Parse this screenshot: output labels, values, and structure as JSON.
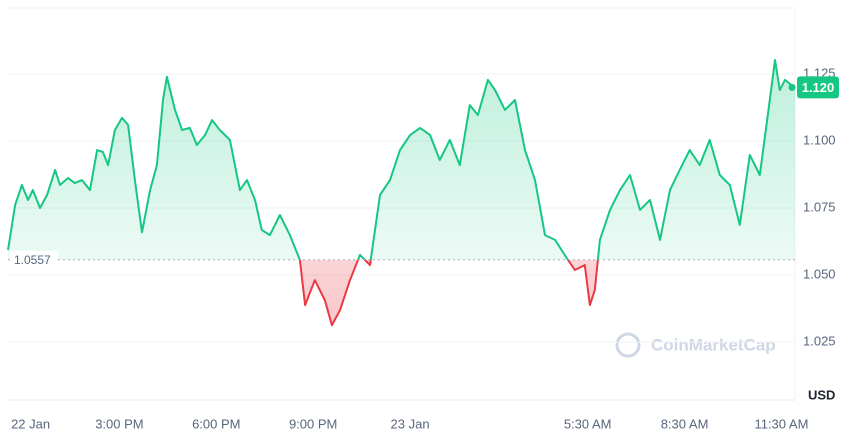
{
  "chart_data": {
    "type": "line",
    "currency": "USD",
    "watermark": "CoinMarketCap",
    "x": [
      11.55,
      11.77,
      11.98,
      12.17,
      12.32,
      12.54,
      12.76,
      13.01,
      13.16,
      13.41,
      13.62,
      13.84,
      14.09,
      14.31,
      14.49,
      14.65,
      14.86,
      15.08,
      15.27,
      15.48,
      15.7,
      15.95,
      16.16,
      16.35,
      16.47,
      16.72,
      16.94,
      17.18,
      17.4,
      17.65,
      17.87,
      18.11,
      18.42,
      18.73,
      18.95,
      19.2,
      19.41,
      19.66,
      19.97,
      20.28,
      20.59,
      20.75,
      21.05,
      21.36,
      21.58,
      21.83,
      22.14,
      22.45,
      22.76,
      23.07,
      23.38,
      23.69,
      24.0,
      24.31,
      24.62,
      24.92,
      25.23,
      25.54,
      25.85,
      26.1,
      26.41,
      26.63,
      26.94,
      27.25,
      27.56,
      27.87,
      28.18,
      28.49,
      28.79,
      29.1,
      29.41,
      29.57,
      29.72,
      29.88,
      30.19,
      30.5,
      30.81,
      31.12,
      31.43,
      31.74,
      32.05,
      32.35,
      32.66,
      32.97,
      33.28,
      33.59,
      33.9,
      34.21,
      34.52,
      34.83,
      35.14,
      35.3,
      35.45,
      35.61,
      35.92
    ],
    "values": [
      1.0593,
      1.0761,
      1.0836,
      1.078,
      1.0817,
      1.075,
      1.0799,
      1.0892,
      1.0836,
      1.0862,
      1.0843,
      1.0854,
      1.0817,
      1.0966,
      1.0959,
      1.091,
      1.1041,
      1.1086,
      1.106,
      1.0854,
      1.066,
      1.0817,
      1.091,
      1.1153,
      1.1239,
      1.1116,
      1.1041,
      1.1049,
      1.0985,
      1.1022,
      1.1078,
      1.1041,
      1.1004,
      1.0817,
      1.0854,
      1.078,
      1.0668,
      1.0649,
      1.0724,
      1.0649,
      1.0556,
      1.0388,
      1.0481,
      1.0407,
      1.0313,
      1.0369,
      1.0481,
      1.0575,
      1.0537,
      1.0799,
      1.0854,
      1.0966,
      1.1022,
      1.1049,
      1.1022,
      1.0929,
      1.1004,
      1.091,
      1.1134,
      1.1097,
      1.1228,
      1.119,
      1.1116,
      1.1153,
      1.0966,
      1.0854,
      1.0649,
      1.0631,
      1.0575,
      1.0519,
      1.0537,
      1.0388,
      1.0444,
      1.0631,
      1.0743,
      1.0817,
      1.0873,
      1.0743,
      1.078,
      1.0631,
      1.0817,
      1.0892,
      1.0966,
      1.091,
      1.1004,
      1.0873,
      1.0836,
      1.0687,
      1.0948,
      1.0873,
      1.1153,
      1.1302,
      1.119,
      1.1228,
      1.1198
    ],
    "reference": 1.0557,
    "current": {
      "value": 1.12,
      "label": "1.120"
    },
    "up_color": "#16c784",
    "down_color": "#ea3943",
    "xlim": [
      11.55,
      35.92
    ],
    "xticks": [
      {
        "value": 12.25,
        "label": "22 Jan"
      },
      {
        "value": 15,
        "label": "3:00 PM"
      },
      {
        "value": 18,
        "label": "6:00 PM"
      },
      {
        "value": 21,
        "label": "9:00 PM"
      },
      {
        "value": 24,
        "label": "23 Jan"
      },
      {
        "value": 29.5,
        "label": "5:30 AM"
      },
      {
        "value": 32.5,
        "label": "8:30 AM"
      },
      {
        "value": 35.5,
        "label": "11:30 AM"
      }
    ],
    "ylim": [
      1.0034,
      1.1496
    ],
    "yticks": [
      1.025,
      {
        "value": 1.05,
        "label": "1.050"
      },
      1.075,
      {
        "value": 1.1,
        "label": "1.100"
      },
      1.125
    ],
    "grid": true
  }
}
